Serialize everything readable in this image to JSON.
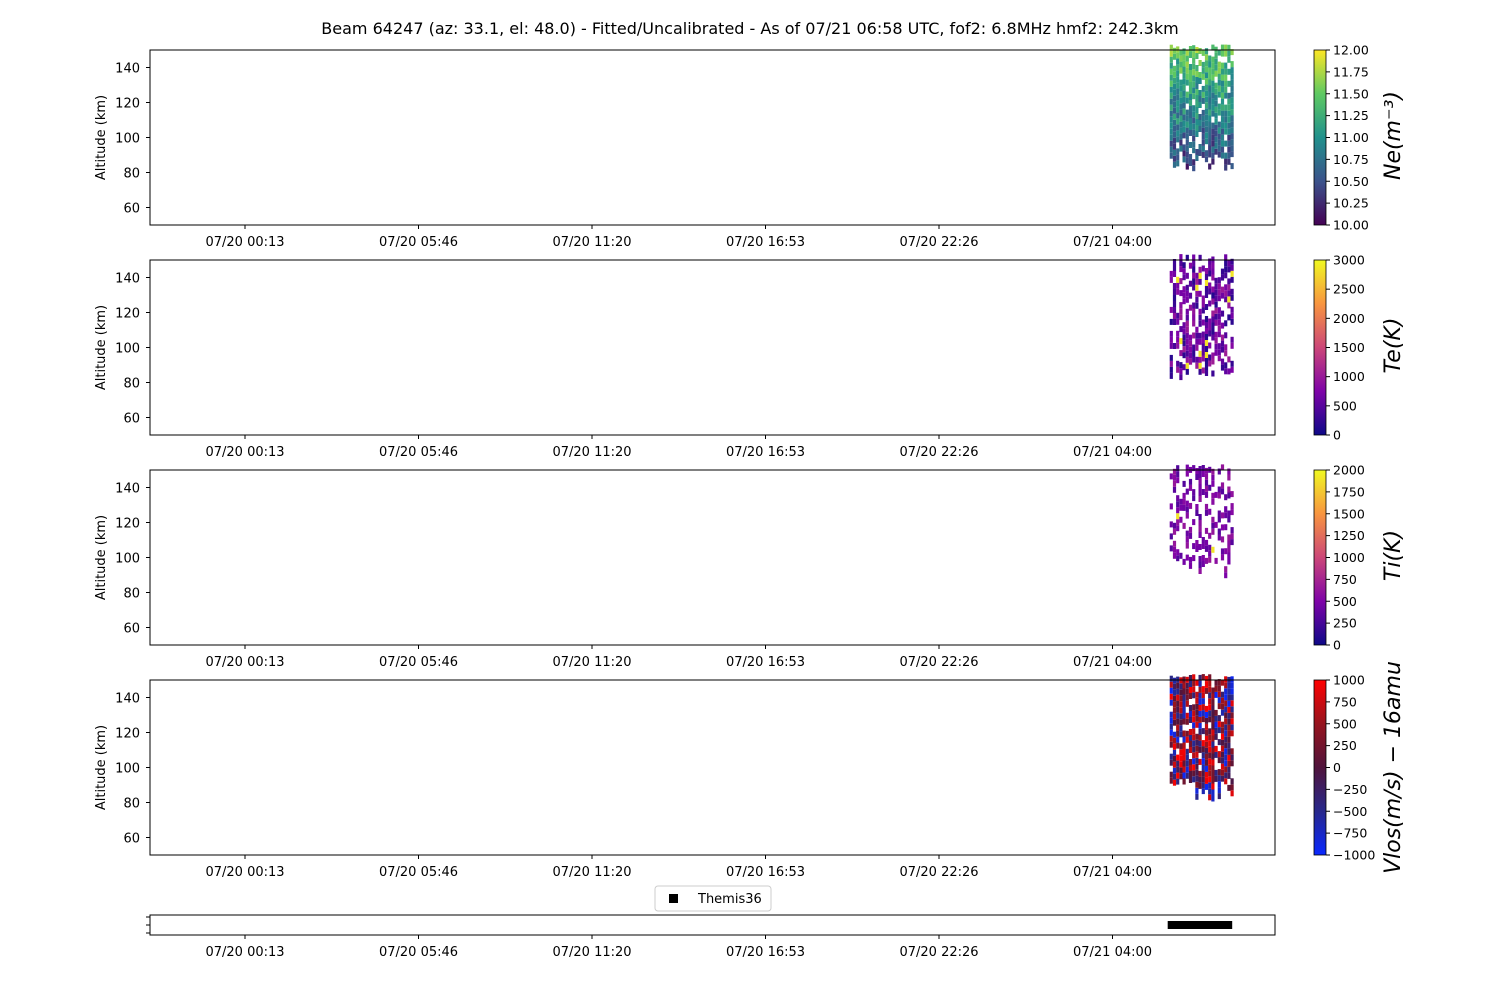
{
  "title": "Beam 64247 (az: 33.1, el: 48.0) - Fitted/Uncalibrated - As of 07/21 06:58 UTC, fof2: 6.8MHz  hmf2: 242.3km",
  "time_ticks": [
    "07/20 00:13",
    "07/20 05:46",
    "07/20 11:20",
    "07/20 16:53",
    "07/20 22:26",
    "07/21 04:00"
  ],
  "chart_data": [
    {
      "type": "heatmap",
      "ylabel": "Altitude (km)",
      "ylim": [
        50,
        150
      ],
      "yticks": [
        60,
        80,
        100,
        120,
        140
      ],
      "colorbar": {
        "label": "Ne(m^{-3})",
        "label_display": "Ne(m⁻³)",
        "colormap": "viridis",
        "range": [
          10.0,
          12.0
        ],
        "ticks": [
          "10.00",
          "10.25",
          "10.50",
          "10.75",
          "11.00",
          "11.25",
          "11.50",
          "11.75",
          "12.00"
        ]
      },
      "data_extent": {
        "time": [
          "07/21 05:50",
          "07/21 07:50"
        ],
        "altitude_km": [
          80,
          150
        ]
      },
      "grid": false
    },
    {
      "type": "heatmap",
      "ylabel": "Altitude (km)",
      "ylim": [
        50,
        150
      ],
      "yticks": [
        60,
        80,
        100,
        120,
        140
      ],
      "colorbar": {
        "label": "Te(K)",
        "label_display": "Te(K)",
        "colormap": "plasma",
        "range": [
          0,
          3000
        ],
        "ticks": [
          "0",
          "500",
          "1000",
          "1500",
          "2000",
          "2500",
          "3000"
        ]
      },
      "data_extent": {
        "time": [
          "07/21 05:50",
          "07/21 07:50"
        ],
        "altitude_km": [
          80,
          150
        ]
      },
      "grid": false
    },
    {
      "type": "heatmap",
      "ylabel": "Altitude (km)",
      "ylim": [
        50,
        150
      ],
      "yticks": [
        60,
        80,
        100,
        120,
        140
      ],
      "colorbar": {
        "label": "Ti(K)",
        "label_display": "Ti(K)",
        "colormap": "plasma",
        "range": [
          0,
          2000
        ],
        "ticks": [
          "0",
          "250",
          "500",
          "750",
          "1000",
          "1250",
          "1500",
          "1750",
          "2000"
        ]
      },
      "data_extent": {
        "time": [
          "07/21 05:50",
          "07/21 07:50"
        ],
        "altitude_km": [
          88,
          150
        ]
      },
      "grid": false
    },
    {
      "type": "heatmap",
      "ylabel": "Altitude (km)",
      "ylim": [
        50,
        150
      ],
      "yticks": [
        60,
        80,
        100,
        120,
        140
      ],
      "colorbar": {
        "label": "Vlos(m/s) − 16amu",
        "label_display": "Vlos(m/s) − 16amu",
        "colormap": "bwr",
        "range": [
          -1000,
          1000
        ],
        "ticks": [
          "−1000",
          "−750",
          "−500",
          "−250",
          "0",
          "250",
          "500",
          "750",
          "1000"
        ]
      },
      "data_extent": {
        "time": [
          "07/21 05:50",
          "07/21 07:50"
        ],
        "altitude_km": [
          80,
          150
        ]
      },
      "grid": false
    },
    {
      "type": "scatter",
      "legend": [
        "Themis36"
      ],
      "legend_placement": "top-center",
      "series": [
        {
          "name": "Themis36",
          "marker": "square",
          "color": "#000000",
          "x_range": [
            "07/21 05:50",
            "07/21 07:50"
          ]
        }
      ]
    }
  ]
}
